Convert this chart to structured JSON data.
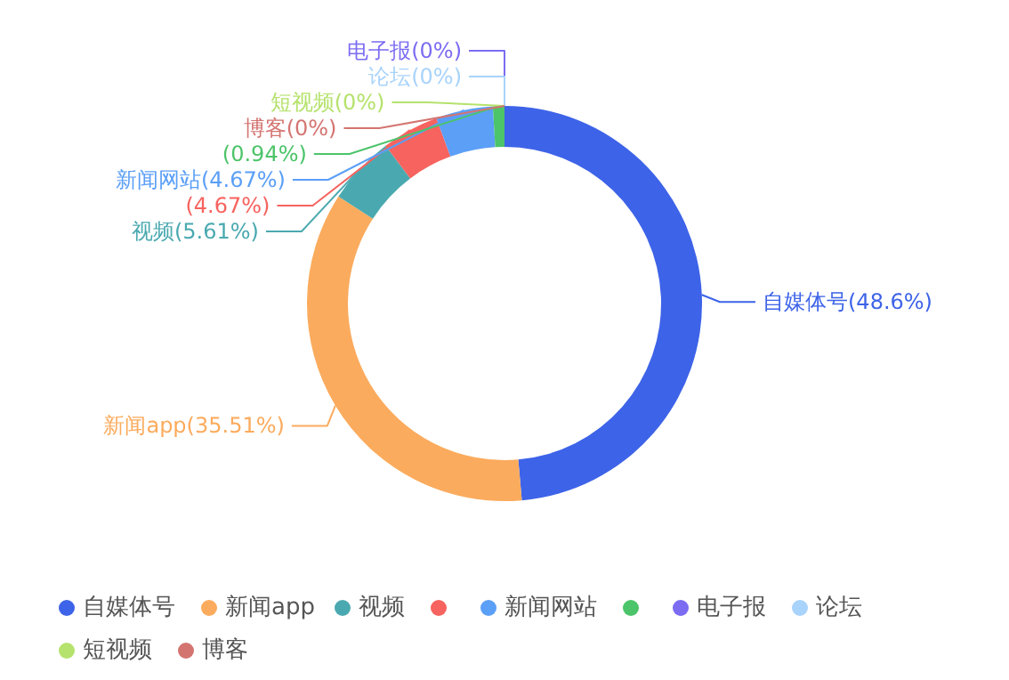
{
  "chart_data": {
    "type": "donut",
    "categories": [
      "自媒体号",
      "新闻app",
      "视频",
      null,
      "新闻网站",
      null,
      "电子报",
      "论坛",
      "短视频",
      "博客"
    ],
    "values": [
      48.6,
      35.51,
      5.61,
      4.67,
      4.67,
      0.94,
      0,
      0,
      0,
      0
    ],
    "value_labels": [
      "(48.6%)",
      "(35.51%)",
      "(5.61%)",
      "(4.67%)",
      "(4.67%)",
      "(0.94%)",
      "(0%)",
      "(0%)",
      "(0%)",
      "(0%)"
    ],
    "colors": [
      "#3d63e8",
      "#fbab5d",
      "#4aa9b0",
      "#f7635f",
      "#5b9ff7",
      "#4cc46a",
      "#7b6cf2",
      "#a8d3fb",
      "#b5e26c",
      "#d47470"
    ],
    "legend": "bottom"
  }
}
